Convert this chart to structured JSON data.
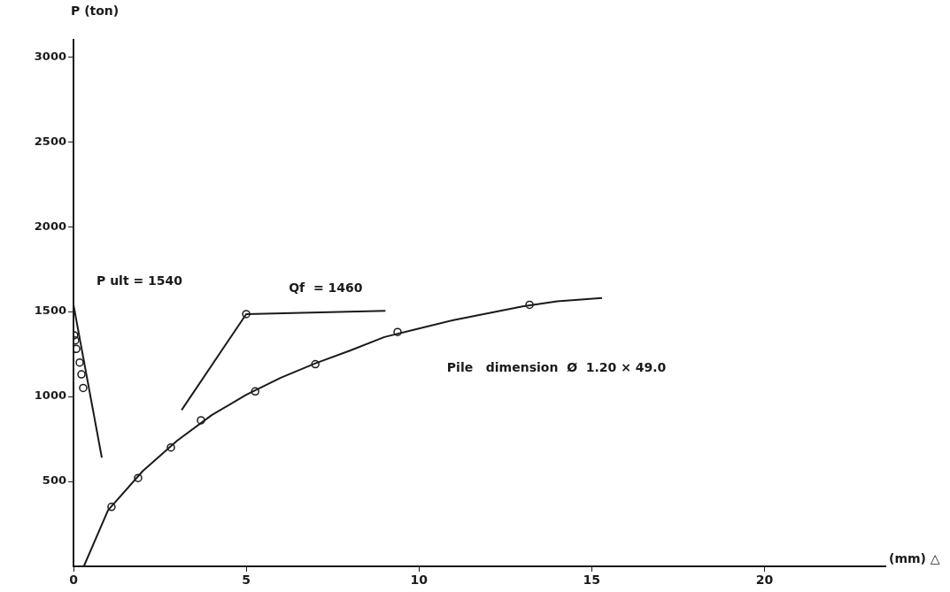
{
  "chart_data": {
    "type": "scatter",
    "xlabel": "(mm) △",
    "ylabel": "P (ton)",
    "xlim": [
      0,
      23.5
    ],
    "xticks": [
      0,
      5,
      10,
      15,
      20
    ],
    "ylim": [
      0,
      3100
    ],
    "yticks": [
      500,
      1000,
      1500,
      2000,
      2500,
      3000
    ],
    "grid": false,
    "legend": false,
    "series": [
      {
        "type": "line",
        "color": "#1a1a1a",
        "marker": "none",
        "x": [
          0.3,
          1,
          2,
          3,
          4,
          5,
          6,
          7,
          8,
          9,
          10,
          11,
          12,
          13,
          14,
          15.3
        ],
        "values": [
          0,
          330,
          560,
          740,
          890,
          1010,
          1110,
          1195,
          1270,
          1350,
          1400,
          1450,
          1490,
          1530,
          1560,
          1580
        ]
      },
      {
        "type": "scatter",
        "color": "#1a1a1a",
        "marker": "circle",
        "x": [
          1.1,
          1.87,
          2.82,
          3.69,
          5.26,
          7.0,
          9.38,
          13.2
        ],
        "values": [
          350,
          520,
          700,
          860,
          1030,
          1190,
          1380,
          1540
        ]
      },
      {
        "type": "line",
        "color": "#1a1a1a",
        "marker": "none",
        "x": [
          0,
          0.82
        ],
        "values": [
          1540,
          640
        ]
      },
      {
        "type": "scatter",
        "color": "#1a1a1a",
        "marker": "circle",
        "x": [
          0.02,
          0.05,
          0.08,
          0.18,
          0.23,
          0.28
        ],
        "values": [
          1360,
          1330,
          1280,
          1200,
          1130,
          1050
        ]
      },
      {
        "type": "line",
        "color": "#1a1a1a",
        "marker": "none",
        "x": [
          3.13,
          5.0,
          9.03
        ],
        "values": [
          920,
          1485,
          1505
        ]
      },
      {
        "type": "scatter",
        "color": "#1a1a1a",
        "marker": "circle",
        "x": [
          5.0
        ],
        "values": [
          1485
        ]
      }
    ],
    "annotations": [
      {
        "text": "P ult = 1540",
        "x": 0,
        "y": 1540
      },
      {
        "text": "Qf  = 1460",
        "x": 7,
        "y": 1500
      },
      "Pile   dimension  Ø  1.20 × 49.0"
    ]
  }
}
